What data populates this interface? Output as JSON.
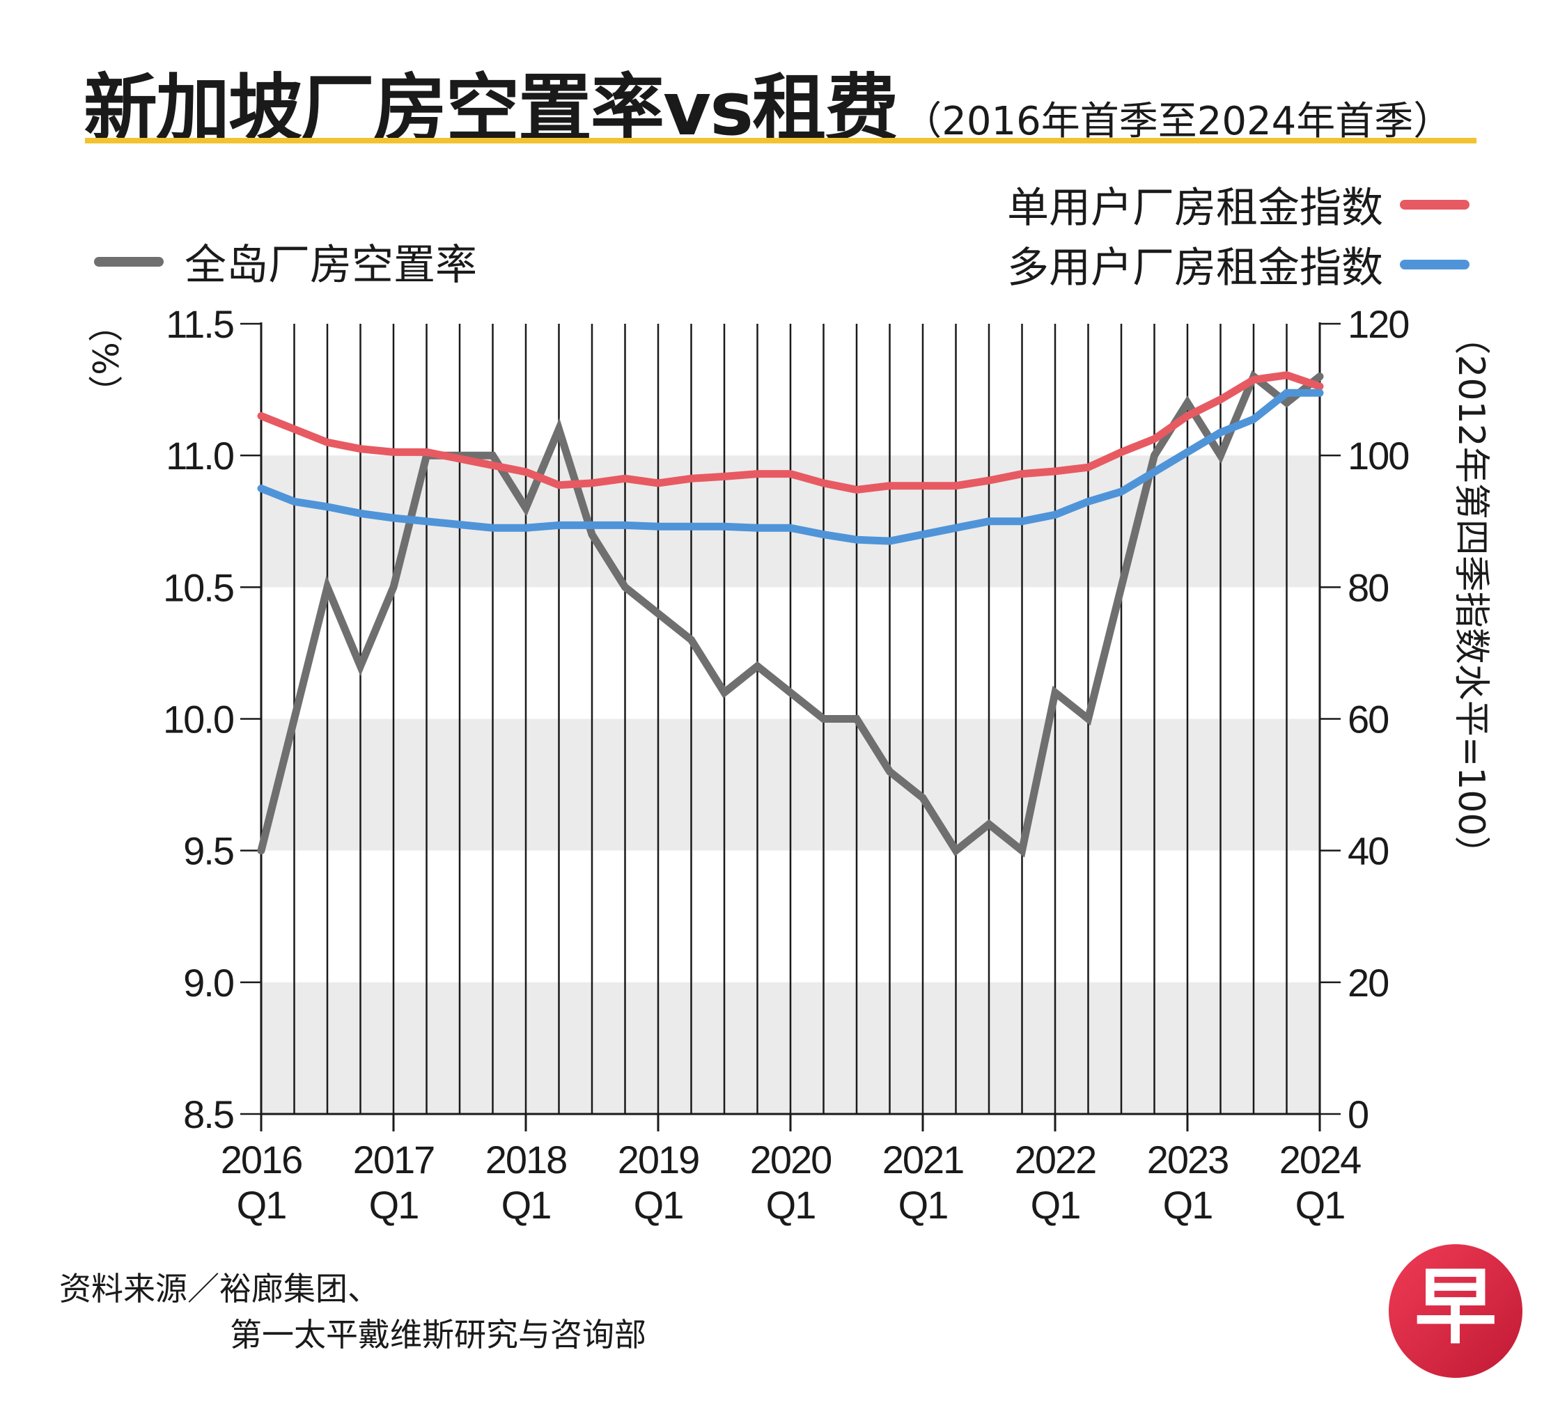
{
  "title": "新加坡厂房空置率vs租费",
  "subtitle": "（2016年首季至2024年首季）",
  "legend": {
    "vacancy": "全岛厂房空置率",
    "single_user": "单用户厂房租金指数",
    "multi_user": "多用户厂房租金指数"
  },
  "colors": {
    "vacancy": "#6f6f6f",
    "single_user": "#e75a62",
    "multi_user": "#4f94d8",
    "title_rule": "#f2c230",
    "band": "#ebebeb"
  },
  "source": {
    "line1": "资料来源／裕廊集团、",
    "line2": "第一太平戴维斯研究与咨询部"
  },
  "logo_text": "早",
  "chart_data": {
    "type": "line",
    "title": "新加坡厂房空置率vs租费",
    "ylabel_left": "（%）",
    "ylabel_right": "（2012年第四季指数水平=100）",
    "ylim_left": [
      8.5,
      11.5
    ],
    "yticks_left": [
      "11.5",
      "11.0",
      "10.5",
      "10.0",
      "9.5",
      "9.0",
      "8.5"
    ],
    "ylim_right": [
      0,
      120
    ],
    "yticks_right": [
      "120",
      "100",
      "80",
      "60",
      "40",
      "20",
      "0"
    ],
    "x_tick_labels": [
      {
        "year": "2016",
        "q": "Q1"
      },
      {
        "year": "2017",
        "q": "Q1"
      },
      {
        "year": "2018",
        "q": "Q1"
      },
      {
        "year": "2019",
        "q": "Q1"
      },
      {
        "year": "2020",
        "q": "Q1"
      },
      {
        "year": "2021",
        "q": "Q1"
      },
      {
        "year": "2022",
        "q": "Q1"
      },
      {
        "year": "2023",
        "q": "Q1"
      },
      {
        "year": "2024",
        "q": "Q1"
      }
    ],
    "quarters": 33,
    "series": [
      {
        "name": "全岛厂房空置率",
        "axis": "left",
        "values": [
          9.5,
          10.0,
          10.5,
          10.2,
          10.5,
          11.0,
          11.0,
          11.0,
          10.8,
          11.1,
          10.7,
          10.5,
          10.4,
          10.3,
          10.1,
          10.2,
          10.1,
          10.0,
          10.0,
          9.8,
          9.7,
          9.5,
          9.6,
          9.5,
          10.1,
          10.0,
          10.5,
          11.0,
          11.2,
          11.0,
          11.3,
          11.2,
          11.3
        ]
      },
      {
        "name": "单用户厂房租金指数",
        "axis": "right",
        "values": [
          106,
          104,
          102,
          101,
          100.5,
          100.5,
          99.5,
          98.5,
          97.5,
          95.5,
          95.8,
          96.5,
          95.8,
          96.5,
          96.8,
          97.2,
          97.2,
          95.8,
          94.8,
          95.4,
          95.4,
          95.4,
          96.2,
          97.2,
          97.6,
          98.2,
          100.5,
          102.5,
          106,
          108.5,
          111.5,
          112.2,
          110.5
        ]
      },
      {
        "name": "多用户厂房租金指数",
        "axis": "right",
        "values": [
          95,
          93,
          92.2,
          91.2,
          90.5,
          90,
          89.5,
          89,
          89,
          89.4,
          89.4,
          89.4,
          89.2,
          89.2,
          89.2,
          89,
          89,
          88,
          87.2,
          87,
          88,
          89,
          90,
          90,
          91,
          93,
          94.5,
          97.5,
          100.5,
          103.5,
          105.5,
          109.5,
          109.5
        ]
      }
    ]
  }
}
